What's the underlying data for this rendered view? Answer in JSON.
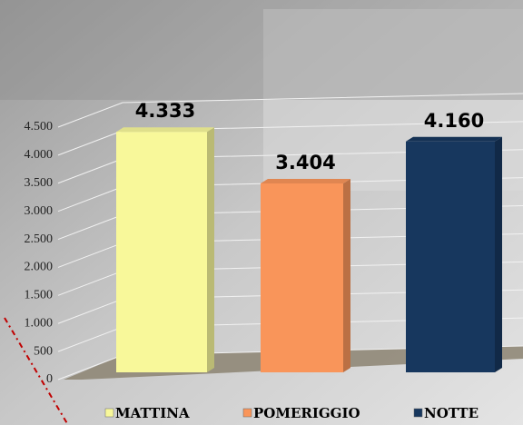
{
  "chart_data": {
    "type": "bar3d",
    "categories": [
      "MATTINA",
      "POMERIGGIO",
      "NOTTE"
    ],
    "values": [
      4333,
      3404,
      4160
    ],
    "value_labels": [
      "4.333",
      "3.404",
      "4.160"
    ],
    "colors": [
      "#f8f89a",
      "#f9955a",
      "#17375e"
    ],
    "ylim": [
      0,
      4500
    ],
    "yticks": [
      {
        "value": 0,
        "label": "0"
      },
      {
        "value": 500,
        "label": "500"
      },
      {
        "value": 1000,
        "label": "1.000"
      },
      {
        "value": 1500,
        "label": "1.500"
      },
      {
        "value": 2000,
        "label": "2.000"
      },
      {
        "value": 2500,
        "label": "2.500"
      },
      {
        "value": 3000,
        "label": "3.000"
      },
      {
        "value": 3500,
        "label": "3.500"
      },
      {
        "value": 4000,
        "label": "4.000"
      },
      {
        "value": 4500,
        "label": "4.500"
      }
    ],
    "grid": true
  }
}
